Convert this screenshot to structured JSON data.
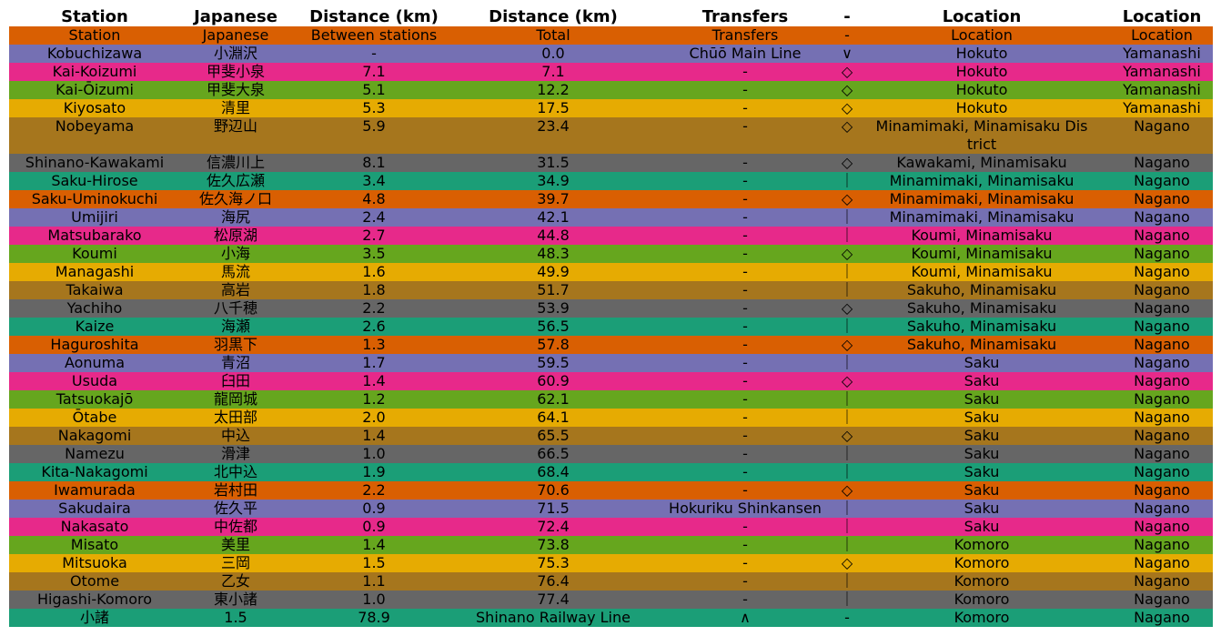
{
  "chart_data": {
    "type": "table",
    "columns": [
      "Station",
      "Japanese",
      "Distance (km)",
      "Distance (km)",
      "Transfers",
      "-",
      "Location",
      "Location"
    ],
    "colors": [
      "#d95f02",
      "#7570b3",
      "#e7298a",
      "#66a61e",
      "#e6ab02",
      "#a6761d",
      "#666666",
      "#1b9e77"
    ],
    "rows": [
      [
        "Station",
        "Japanese",
        "Between stations",
        "Total",
        "Transfers",
        "-",
        "Location",
        "Location"
      ],
      [
        "Kobuchizawa",
        "小淵沢",
        "-",
        "0.0",
        "Chūō Main Line",
        "∨",
        "Hokuto",
        "Yamanashi"
      ],
      [
        "Kai-Koizumi",
        "甲斐小泉",
        "7.1",
        "7.1",
        "-",
        "◇",
        "Hokuto",
        "Yamanashi"
      ],
      [
        "Kai-Ōizumi",
        "甲斐大泉",
        "5.1",
        "12.2",
        "-",
        "◇",
        "Hokuto",
        "Yamanashi"
      ],
      [
        "Kiyosato",
        "清里",
        "5.3",
        "17.5",
        "-",
        "◇",
        "Hokuto",
        "Yamanashi"
      ],
      [
        "Nobeyama",
        "野辺山",
        "5.9",
        "23.4",
        "-",
        "◇",
        "Minamimaki, Minamisaku District",
        "Nagano"
      ],
      [
        "Shinano-Kawakami",
        "信濃川上",
        "8.1",
        "31.5",
        "-",
        "◇",
        "Kawakami, Minamisaku",
        "Nagano"
      ],
      [
        "Saku-Hirose",
        "佐久広瀬",
        "3.4",
        "34.9",
        "-",
        "｜",
        "Minamimaki, Minamisaku",
        "Nagano"
      ],
      [
        "Saku-Uminokuchi",
        "佐久海ノ口",
        "4.8",
        "39.7",
        "-",
        "◇",
        "Minamimaki, Minamisaku",
        "Nagano"
      ],
      [
        "Umijiri",
        "海尻",
        "2.4",
        "42.1",
        "-",
        "｜",
        "Minamimaki, Minamisaku",
        "Nagano"
      ],
      [
        "Matsubarako",
        "松原湖",
        "2.7",
        "44.8",
        "-",
        "｜",
        "Koumi, Minamisaku",
        "Nagano"
      ],
      [
        "Koumi",
        "小海",
        "3.5",
        "48.3",
        "-",
        "◇",
        "Koumi, Minamisaku",
        "Nagano"
      ],
      [
        "Managashi",
        "馬流",
        "1.6",
        "49.9",
        "-",
        "｜",
        "Koumi, Minamisaku",
        "Nagano"
      ],
      [
        "Takaiwa",
        "高岩",
        "1.8",
        "51.7",
        "-",
        "｜",
        "Sakuho, Minamisaku",
        "Nagano"
      ],
      [
        "Yachiho",
        "八千穂",
        "2.2",
        "53.9",
        "-",
        "◇",
        "Sakuho, Minamisaku",
        "Nagano"
      ],
      [
        "Kaize",
        "海瀬",
        "2.6",
        "56.5",
        "-",
        "｜",
        "Sakuho, Minamisaku",
        "Nagano"
      ],
      [
        "Haguroshita",
        "羽黒下",
        "1.3",
        "57.8",
        "-",
        "◇",
        "Sakuho, Minamisaku",
        "Nagano"
      ],
      [
        "Aonuma",
        "青沼",
        "1.7",
        "59.5",
        "-",
        "｜",
        "Saku",
        "Nagano"
      ],
      [
        "Usuda",
        "臼田",
        "1.4",
        "60.9",
        "-",
        "◇",
        "Saku",
        "Nagano"
      ],
      [
        "Tatsuokajō",
        "龍岡城",
        "1.2",
        "62.1",
        "-",
        "｜",
        "Saku",
        "Nagano"
      ],
      [
        "Ōtabe",
        "太田部",
        "2.0",
        "64.1",
        "-",
        "｜",
        "Saku",
        "Nagano"
      ],
      [
        "Nakagomi",
        "中込",
        "1.4",
        "65.5",
        "-",
        "◇",
        "Saku",
        "Nagano"
      ],
      [
        "Namezu",
        "滑津",
        "1.0",
        "66.5",
        "-",
        "｜",
        "Saku",
        "Nagano"
      ],
      [
        "Kita-Nakagomi",
        "北中込",
        "1.9",
        "68.4",
        "-",
        "｜",
        "Saku",
        "Nagano"
      ],
      [
        "Iwamurada",
        "岩村田",
        "2.2",
        "70.6",
        "-",
        "◇",
        "Saku",
        "Nagano"
      ],
      [
        "Sakudaira",
        "佐久平",
        "0.9",
        "71.5",
        "Hokuriku Shinkansen",
        "｜",
        "Saku",
        "Nagano"
      ],
      [
        "Nakasato",
        "中佐都",
        "0.9",
        "72.4",
        "-",
        "｜",
        "Saku",
        "Nagano"
      ],
      [
        "Misato",
        "美里",
        "1.4",
        "73.8",
        "-",
        "｜",
        "Komoro",
        "Nagano"
      ],
      [
        "Mitsuoka",
        "三岡",
        "1.5",
        "75.3",
        "-",
        "◇",
        "Komoro",
        "Nagano"
      ],
      [
        "Otome",
        "乙女",
        "1.1",
        "76.4",
        "-",
        "｜",
        "Komoro",
        "Nagano"
      ],
      [
        "Higashi-Komoro",
        "東小諸",
        "1.0",
        "77.4",
        "-",
        "｜",
        "Komoro",
        "Nagano"
      ],
      [
        "小諸",
        "1.5",
        "78.9",
        "Shinano Railway Line",
        "∧",
        "-",
        "Komoro",
        "Nagano"
      ]
    ]
  }
}
